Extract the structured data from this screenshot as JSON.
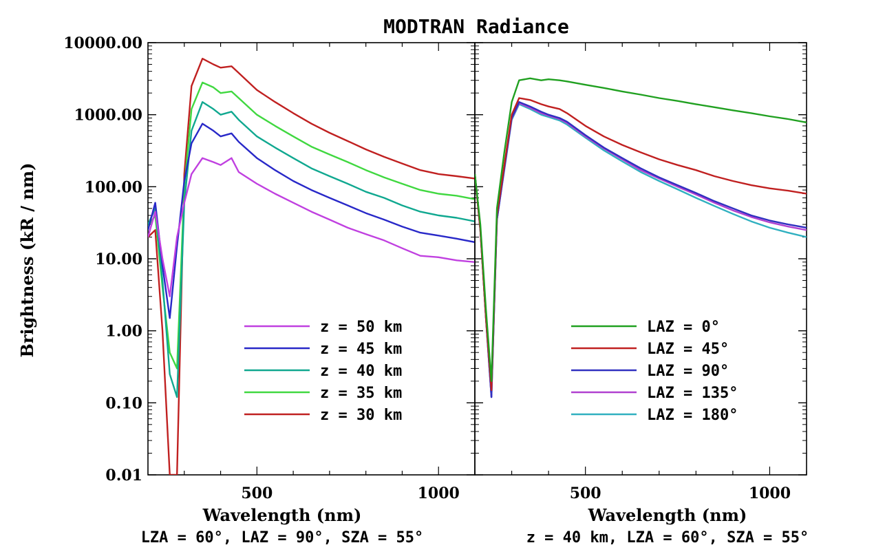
{
  "figure": {
    "title": "MODTRAN Radiance",
    "ylabel": "Brightness (kR / nm)"
  },
  "chart_data": [
    {
      "type": "line",
      "panel": "left",
      "xlabel": "Wavelength (nm)",
      "ylabel": "Brightness (kR / nm)",
      "caption": "LZA = 60°, LAZ = 90°, SZA = 55°",
      "xlim": [
        200,
        1100
      ],
      "ylim": [
        0.01,
        10000
      ],
      "yscale": "log",
      "x_ticks": [
        500,
        1000
      ],
      "y_ticks": [
        0.01,
        0.1,
        1,
        10,
        100,
        1000,
        10000
      ],
      "y_tick_labels": [
        "0.01",
        "0.10",
        "1.00",
        "10.00",
        "100.00",
        "1000.00",
        "10000.00"
      ],
      "legend_position": "bottom-right",
      "series": [
        {
          "name": "z = 50 km",
          "color": "#c040e0",
          "x": [
            200,
            220,
            240,
            260,
            280,
            300,
            320,
            350,
            380,
            400,
            430,
            450,
            500,
            550,
            600,
            650,
            700,
            750,
            800,
            850,
            900,
            950,
            1000,
            1050,
            1100
          ],
          "y": [
            20,
            45,
            10,
            3,
            20,
            60,
            150,
            250,
            220,
            200,
            250,
            160,
            110,
            80,
            60,
            45,
            35,
            27,
            22,
            18,
            14,
            11,
            10.5,
            9.5,
            9
          ]
        },
        {
          "name": "z = 45 km",
          "color": "#2828c8",
          "x": [
            200,
            220,
            240,
            260,
            280,
            300,
            320,
            350,
            380,
            400,
            430,
            450,
            500,
            550,
            600,
            650,
            700,
            750,
            800,
            850,
            900,
            950,
            1000,
            1050,
            1100
          ],
          "y": [
            25,
            60,
            8,
            1.5,
            15,
            120,
            400,
            750,
            600,
            500,
            550,
            420,
            250,
            170,
            120,
            90,
            70,
            55,
            43,
            35,
            28,
            23,
            21,
            19,
            17
          ]
        },
        {
          "name": "z = 40 km",
          "color": "#10a890",
          "x": [
            200,
            220,
            240,
            260,
            280,
            300,
            320,
            350,
            380,
            400,
            430,
            450,
            500,
            550,
            600,
            650,
            700,
            750,
            800,
            850,
            900,
            950,
            1000,
            1050,
            1100
          ],
          "y": [
            30,
            50,
            5,
            0.25,
            0.12,
            60,
            600,
            1500,
            1200,
            1000,
            1100,
            850,
            500,
            350,
            250,
            180,
            140,
            110,
            85,
            70,
            55,
            45,
            40,
            37,
            33
          ]
        },
        {
          "name": "z = 35 km",
          "color": "#40d840",
          "x": [
            200,
            220,
            240,
            260,
            280,
            300,
            320,
            350,
            380,
            400,
            430,
            450,
            500,
            550,
            600,
            650,
            700,
            750,
            800,
            850,
            900,
            950,
            1000,
            1050,
            1100
          ],
          "y": [
            28,
            40,
            4,
            0.5,
            0.3,
            100,
            1200,
            2800,
            2400,
            2000,
            2100,
            1700,
            1000,
            700,
            500,
            360,
            280,
            220,
            170,
            135,
            110,
            90,
            80,
            75,
            67
          ]
        },
        {
          "name": "z = 30 km",
          "color": "#c02020",
          "x": [
            200,
            220,
            240,
            260,
            280,
            300,
            320,
            350,
            380,
            400,
            430,
            450,
            500,
            550,
            600,
            650,
            700,
            750,
            800,
            850,
            900,
            950,
            1000,
            1050,
            1100
          ],
          "y": [
            20,
            25,
            1,
            0.01,
            0.01,
            150,
            2500,
            6000,
            5000,
            4500,
            4700,
            3800,
            2200,
            1500,
            1050,
            750,
            560,
            430,
            330,
            260,
            210,
            170,
            150,
            140,
            130
          ]
        }
      ]
    },
    {
      "type": "line",
      "panel": "right",
      "xlabel": "Wavelength (nm)",
      "caption": "z = 40 km, LZA = 60°, SZA = 55°",
      "xlim": [
        200,
        1100
      ],
      "ylim": [
        0.01,
        10000
      ],
      "yscale": "log",
      "x_ticks": [
        500,
        1000
      ],
      "legend_position": "bottom-right",
      "series": [
        {
          "name": "LAZ = 0°",
          "color": "#20a020",
          "x": [
            200,
            215,
            230,
            245,
            260,
            280,
            300,
            320,
            350,
            380,
            400,
            430,
            450,
            500,
            550,
            600,
            650,
            700,
            750,
            800,
            850,
            900,
            950,
            1000,
            1050,
            1100
          ],
          "y": [
            150,
            30,
            2,
            0.2,
            50,
            300,
            1500,
            3000,
            3200,
            3000,
            3100,
            3000,
            2900,
            2600,
            2350,
            2100,
            1900,
            1700,
            1550,
            1400,
            1270,
            1150,
            1050,
            950,
            870,
            780
          ]
        },
        {
          "name": "LAZ = 45°",
          "color": "#c02020",
          "x": [
            200,
            215,
            230,
            245,
            260,
            280,
            300,
            320,
            350,
            380,
            400,
            430,
            450,
            500,
            550,
            600,
            650,
            700,
            750,
            800,
            850,
            900,
            950,
            1000,
            1050,
            1100
          ],
          "y": [
            150,
            25,
            1.5,
            0.15,
            40,
            200,
            1000,
            1700,
            1600,
            1400,
            1300,
            1200,
            1050,
            700,
            500,
            380,
            300,
            240,
            200,
            170,
            140,
            120,
            105,
            95,
            88,
            80
          ]
        },
        {
          "name": "LAZ = 90°",
          "color": "#3030c0",
          "x": [
            200,
            215,
            230,
            245,
            260,
            280,
            300,
            320,
            350,
            380,
            400,
            430,
            450,
            500,
            550,
            600,
            650,
            700,
            750,
            800,
            850,
            900,
            950,
            1000,
            1050,
            1100
          ],
          "y": [
            150,
            25,
            1.5,
            0.12,
            35,
            180,
            900,
            1500,
            1300,
            1100,
            1000,
            900,
            800,
            520,
            350,
            250,
            180,
            135,
            105,
            82,
            63,
            50,
            40,
            34,
            30,
            27
          ]
        },
        {
          "name": "LAZ = 135°",
          "color": "#b040d0",
          "x": [
            200,
            215,
            230,
            245,
            260,
            280,
            300,
            320,
            350,
            380,
            400,
            430,
            450,
            500,
            550,
            600,
            650,
            700,
            750,
            800,
            850,
            900,
            950,
            1000,
            1050,
            1100
          ],
          "y": [
            150,
            25,
            1.5,
            0.12,
            35,
            175,
            880,
            1450,
            1250,
            1050,
            970,
            870,
            770,
            500,
            340,
            240,
            170,
            130,
            100,
            78,
            60,
            47,
            38,
            32,
            28,
            25
          ]
        },
        {
          "name": "LAZ = 180°",
          "color": "#30b0c0",
          "x": [
            200,
            215,
            230,
            245,
            260,
            280,
            300,
            320,
            350,
            380,
            400,
            430,
            450,
            500,
            550,
            600,
            650,
            700,
            750,
            800,
            850,
            900,
            950,
            1000,
            1050,
            1100
          ],
          "y": [
            150,
            25,
            1.5,
            0.12,
            35,
            170,
            850,
            1400,
            1200,
            1000,
            930,
            830,
            730,
            480,
            320,
            225,
            160,
            120,
            92,
            70,
            54,
            42,
            33,
            27,
            23,
            20
          ]
        }
      ]
    }
  ]
}
